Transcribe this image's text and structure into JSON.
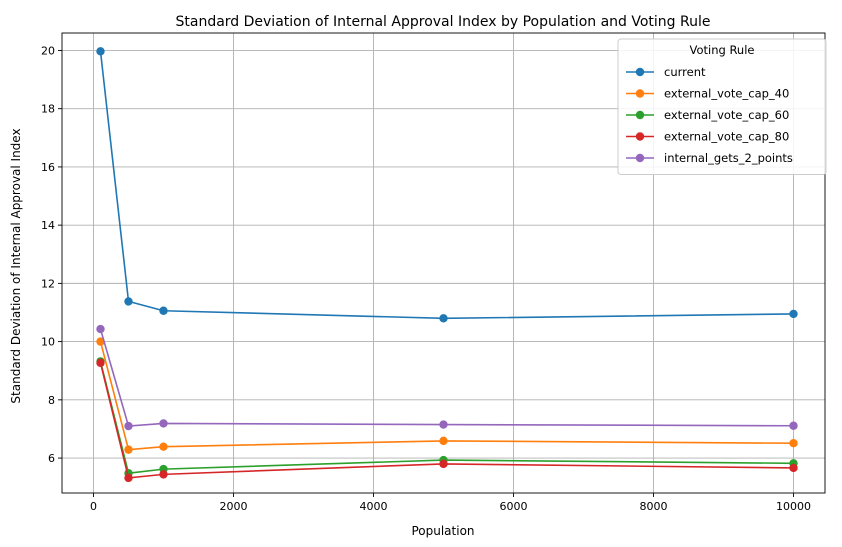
{
  "chart_data": {
    "type": "line",
    "title": "Standard Deviation of Internal Approval Index by Population and Voting Rule",
    "xlabel": "Population",
    "ylabel": "Standard Deviation of Internal Approval Index",
    "xlim": [
      -450,
      10450
    ],
    "ylim": [
      4.8,
      20.6
    ],
    "xticks": [
      0,
      2000,
      4000,
      6000,
      8000,
      10000
    ],
    "yticks": [
      6,
      8,
      10,
      12,
      14,
      16,
      18,
      20
    ],
    "grid": true,
    "legend": {
      "title": "Voting Rule",
      "placement": "upper-right"
    },
    "x": [
      100,
      500,
      1000,
      5000,
      10000
    ],
    "series": [
      {
        "name": "current",
        "color": "#1f77b4",
        "values": [
          19.97,
          11.38,
          11.06,
          10.8,
          10.95
        ]
      },
      {
        "name": "external_vote_cap_40",
        "color": "#ff7f0e",
        "values": [
          10.0,
          6.29,
          6.39,
          6.59,
          6.51
        ]
      },
      {
        "name": "external_vote_cap_60",
        "color": "#2ca02c",
        "values": [
          9.32,
          5.48,
          5.62,
          5.93,
          5.82
        ]
      },
      {
        "name": "external_vote_cap_80",
        "color": "#d62728",
        "values": [
          9.27,
          5.32,
          5.44,
          5.8,
          5.66
        ]
      },
      {
        "name": "internal_gets_2_points",
        "color": "#9467bd",
        "values": [
          10.43,
          7.1,
          7.19,
          7.15,
          7.11
        ]
      }
    ]
  }
}
